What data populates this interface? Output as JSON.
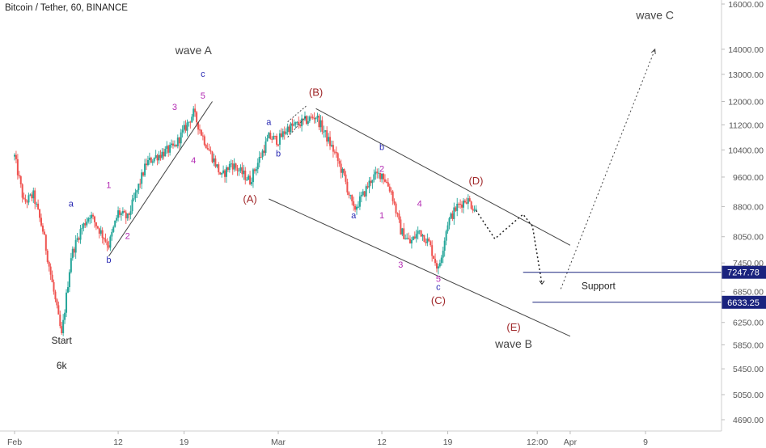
{
  "title": "Bitcoin / Tether, 60, BINANCE",
  "chart_data": {
    "type": "candlestick",
    "title": "Bitcoin / Tether, 60, BINANCE",
    "y_scale": "log",
    "ylim": [
      4500,
      16500
    ],
    "y_ticks": [
      "16000.00",
      "14000.00",
      "13000.00",
      "12000.00",
      "11200.00",
      "10400.00",
      "9600.00",
      "8800.00",
      "8050.00",
      "7450.00",
      "6850.00",
      "6250.00",
      "5850.00",
      "5450.00",
      "5050.00",
      "4690.00"
    ],
    "x_ticks": [
      "Feb",
      "12",
      "19",
      "Mar",
      "12",
      "19",
      "12:00",
      "Apr",
      "9"
    ],
    "price_path": [
      {
        "date": "2018-02-01",
        "value": 10200
      },
      {
        "date": "2018-02-02",
        "value": 8900
      },
      {
        "date": "2018-02-03",
        "value": 9100
      },
      {
        "date": "2018-02-04",
        "value": 8200
      },
      {
        "date": "2018-02-06",
        "value": 6000
      },
      {
        "date": "2018-02-07",
        "value": 7600
      },
      {
        "date": "2018-02-08",
        "value": 8200
      },
      {
        "date": "2018-02-09",
        "value": 8600
      },
      {
        "date": "2018-02-11",
        "value": 7850
      },
      {
        "date": "2018-02-12",
        "value": 8650
      },
      {
        "date": "2018-02-13",
        "value": 8500
      },
      {
        "date": "2018-02-15",
        "value": 10000
      },
      {
        "date": "2018-02-16",
        "value": 10200
      },
      {
        "date": "2018-02-18",
        "value": 10500
      },
      {
        "date": "2018-02-20",
        "value": 11600
      },
      {
        "date": "2018-02-21",
        "value": 10800
      },
      {
        "date": "2018-02-23",
        "value": 9600
      },
      {
        "date": "2018-02-24",
        "value": 10000
      },
      {
        "date": "2018-02-26",
        "value": 9500
      },
      {
        "date": "2018-02-28",
        "value": 10800
      },
      {
        "date": "2018-03-01",
        "value": 10700
      },
      {
        "date": "2018-03-02",
        "value": 11100
      },
      {
        "date": "2018-03-03",
        "value": 11200
      },
      {
        "date": "2018-03-05",
        "value": 11500
      },
      {
        "date": "2018-03-07",
        "value": 10300
      },
      {
        "date": "2018-03-08",
        "value": 9600
      },
      {
        "date": "2018-03-09",
        "value": 8700
      },
      {
        "date": "2018-03-10",
        "value": 9100
      },
      {
        "date": "2018-03-11",
        "value": 9600
      },
      {
        "date": "2018-03-12",
        "value": 9700
      },
      {
        "date": "2018-03-13",
        "value": 9200
      },
      {
        "date": "2018-03-14",
        "value": 8200
      },
      {
        "date": "2018-03-15",
        "value": 7900
      },
      {
        "date": "2018-03-16",
        "value": 8200
      },
      {
        "date": "2018-03-17",
        "value": 7900
      },
      {
        "date": "2018-03-18",
        "value": 7300
      },
      {
        "date": "2018-03-19",
        "value": 8400
      },
      {
        "date": "2018-03-20",
        "value": 8800
      },
      {
        "date": "2018-03-21",
        "value": 9000
      },
      {
        "date": "2018-03-22",
        "value": 8700
      }
    ],
    "support_levels": [
      {
        "value": 7247.78,
        "label": "7247.78"
      },
      {
        "value": 6633.25,
        "label": "6633.25"
      }
    ],
    "support_label": "Support",
    "annotations": {
      "wave_labels": [
        "wave A",
        "wave B",
        "wave C"
      ],
      "start_label": "Start",
      "start_price": "6k",
      "major_points": [
        "(A)",
        "(B)",
        "(C)",
        "(D)",
        "(E)"
      ],
      "minor_numbers": [
        "1",
        "2",
        "3",
        "4",
        "5"
      ],
      "minor_letters": [
        "a",
        "b",
        "c"
      ]
    },
    "colors": {
      "up": "#26a69a",
      "down": "#ef5350",
      "support_line": "#1a237e",
      "major_label": "#a0282a",
      "minor_number": "#b32ab3",
      "minor_letter": "#2a2ab3"
    }
  }
}
